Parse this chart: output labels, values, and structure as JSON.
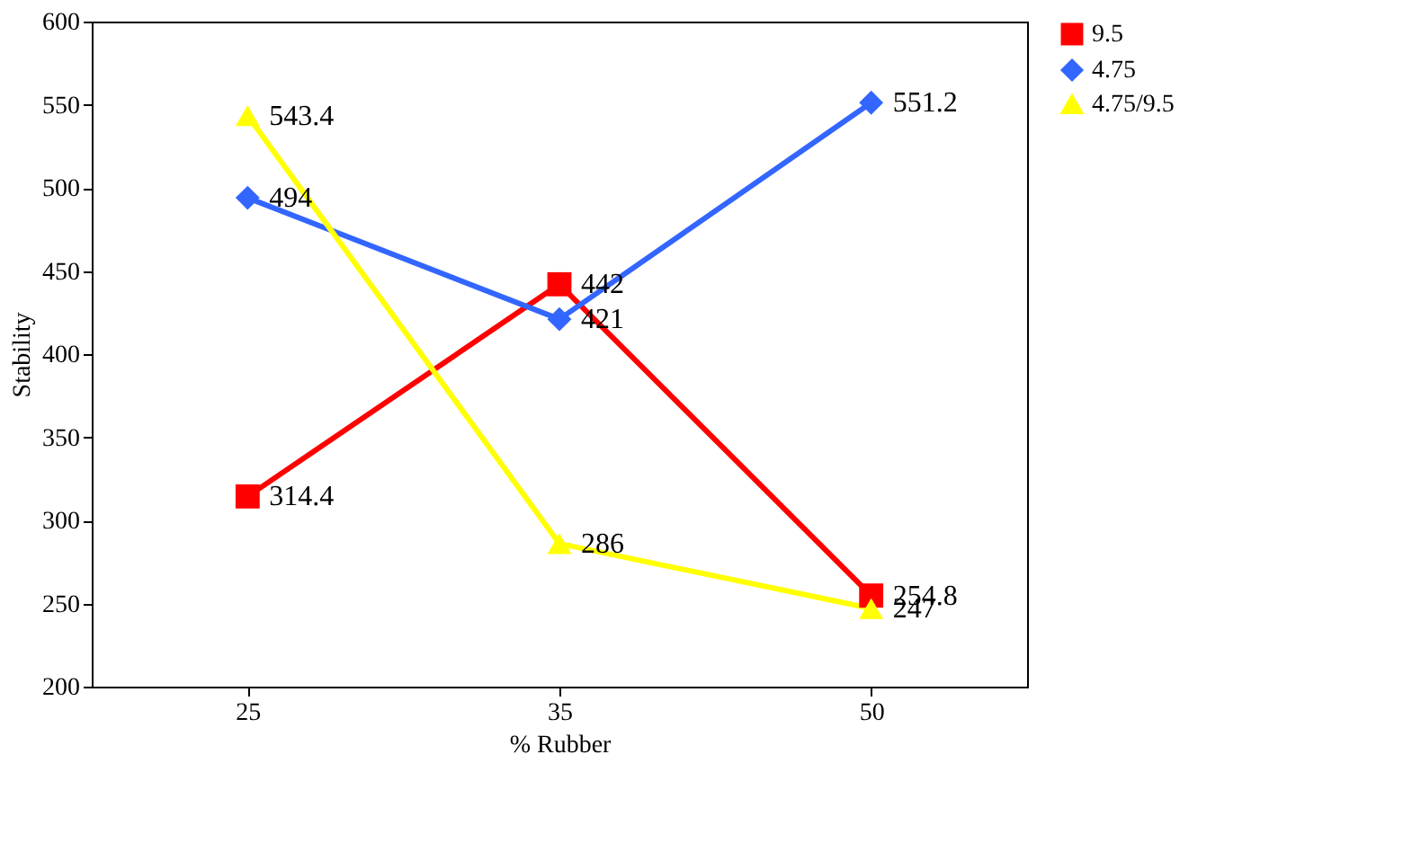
{
  "chart_data": {
    "type": "line",
    "xlabel": "% Rubber",
    "ylabel": "Stability",
    "categories": [
      "25",
      "35",
      "50"
    ],
    "series": [
      {
        "name": "9.5",
        "color": "#ff0000",
        "marker": "square",
        "values": [
          314.4,
          442,
          254.8
        ]
      },
      {
        "name": "4.75",
        "color": "#3366ff",
        "marker": "diamond",
        "values": [
          494,
          421,
          551.2
        ]
      },
      {
        "name": "4.75/9.5",
        "color": "#ffff00",
        "marker": "triangle",
        "values": [
          543.4,
          286,
          247
        ]
      }
    ],
    "ylim": [
      200,
      600
    ],
    "yticks": [
      200,
      250,
      300,
      350,
      400,
      450,
      500,
      550,
      600
    ],
    "grid": false,
    "legend": "right",
    "data_labels": true,
    "line_style": "solid"
  }
}
